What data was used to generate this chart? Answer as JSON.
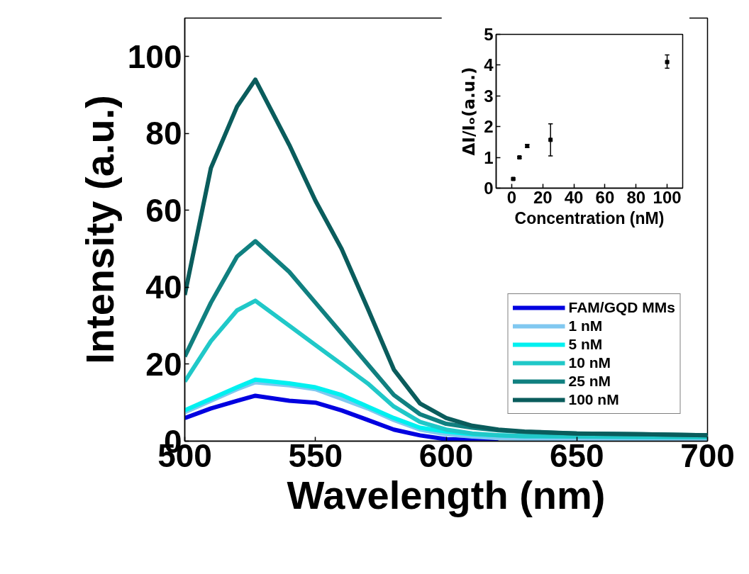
{
  "chart_data": [
    {
      "type": "line",
      "xlabel": "Wavelength (nm)",
      "ylabel": "Intensity (a.u.)",
      "xlim": [
        500,
        700
      ],
      "ylim": [
        0,
        110
      ],
      "xticks": [
        500,
        550,
        600,
        650,
        700
      ],
      "yticks": [
        0,
        20,
        40,
        60,
        80,
        100
      ],
      "legend": "bottom right",
      "line_style": "solid",
      "x": [
        500,
        510,
        520,
        527,
        540,
        550,
        560,
        570,
        580,
        590,
        600,
        610,
        620,
        630,
        650,
        675,
        700
      ],
      "series": [
        {
          "name": "FAM/GQD MMs",
          "color": "#0000e0",
          "values": [
            6,
            8.5,
            10.5,
            11.8,
            10.5,
            10,
            8,
            5.5,
            3,
            1.5,
            0.5,
            0.3,
            0.2,
            null,
            null,
            null,
            null
          ]
        },
        {
          "name": "1 nM",
          "color": "#80c8f0",
          "values": [
            7.5,
            10.5,
            13.5,
            15.3,
            14.5,
            13.5,
            11,
            8.5,
            5.5,
            3,
            1.8,
            1.2,
            0.8,
            0.6,
            0.5,
            0.5,
            0.5
          ]
        },
        {
          "name": "5 nM",
          "color": "#00f0f0",
          "values": [
            8,
            11,
            14,
            16,
            15,
            14,
            12,
            9,
            6,
            3.5,
            2.5,
            1.8,
            1.5,
            1.3,
            1.2,
            1.1,
            1
          ]
        },
        {
          "name": "10 nM",
          "color": "#20c8c8",
          "values": [
            15.5,
            26,
            34,
            36.5,
            30,
            25,
            20,
            15,
            9,
            5,
            3,
            2,
            1.5,
            1.3,
            1.2,
            1.1,
            1
          ]
        },
        {
          "name": "25 nM",
          "color": "#108080",
          "values": [
            22,
            36,
            48,
            52,
            44,
            36,
            28,
            20,
            12,
            7,
            4.5,
            3.5,
            2.8,
            2.4,
            2,
            1.8,
            1.5
          ]
        },
        {
          "name": "100 nM",
          "color": "#0a5c5c",
          "values": [
            38,
            71,
            87,
            94,
            77,
            62.5,
            50,
            34.5,
            18.6,
            9.8,
            6,
            4,
            3,
            2.5,
            2,
            1.8,
            1.5
          ]
        }
      ]
    },
    {
      "type": "scatter",
      "xlabel": "Concentration (nM)",
      "ylabel": "ΔI/Iₒ(a.u.)",
      "xlim": [
        -10,
        110
      ],
      "ylim": [
        0,
        5
      ],
      "xticks": [
        0,
        20,
        40,
        60,
        80,
        100
      ],
      "yticks": [
        0,
        1,
        2,
        3,
        4,
        5
      ],
      "marker": "square",
      "x": [
        1,
        5,
        10,
        25,
        100
      ],
      "series": [
        {
          "color": "#000000",
          "values": [
            0.3,
            1.0,
            1.37,
            1.57,
            4.1
          ],
          "errors": [
            0.03,
            0.03,
            0.05,
            [
              1.05,
              2.09
            ],
            [
              3.9,
              4.33
            ]
          ]
        }
      ]
    }
  ]
}
